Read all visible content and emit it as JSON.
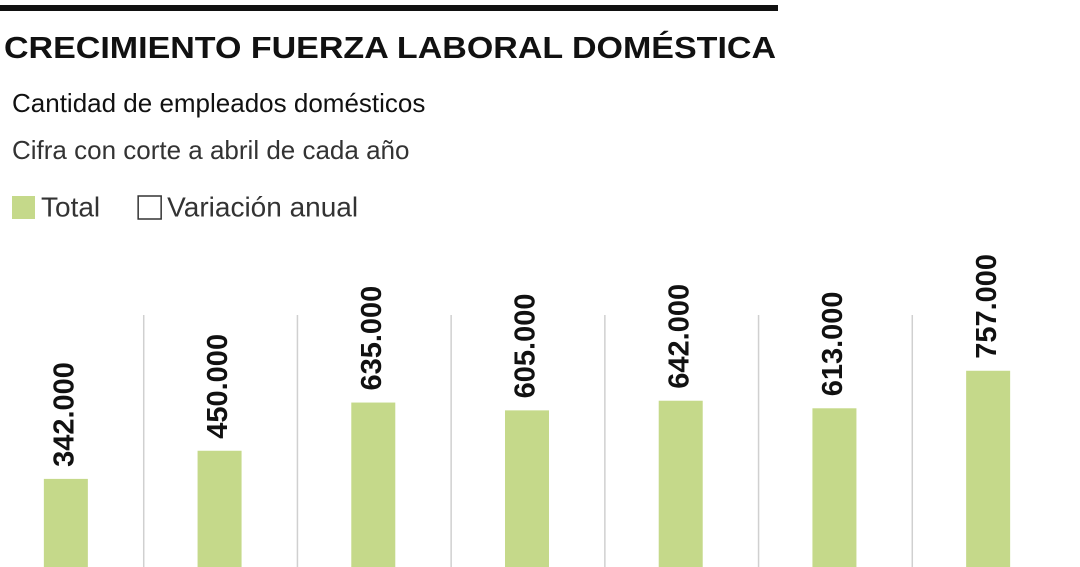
{
  "chart_data": {
    "type": "bar",
    "title": "CRECIMIENTO FUERZA LABORAL DOMÉSTICA",
    "subtitle": "Cantidad de empleados domésticos",
    "note": "Cifra con corte a abril de cada año",
    "legend": [
      {
        "name": "Total",
        "color": "#c5d98a"
      },
      {
        "name": "Variación anual",
        "color": "#ffffff"
      }
    ],
    "values": [
      342000,
      450000,
      635000,
      605000,
      642000,
      613000,
      757000
    ],
    "value_labels": [
      "342.000",
      "450.000",
      "635.000",
      "605.000",
      "642.000",
      "613.000",
      "757.000"
    ],
    "color": "#c5d98a",
    "ylim": [
      0,
      2180000
    ]
  }
}
